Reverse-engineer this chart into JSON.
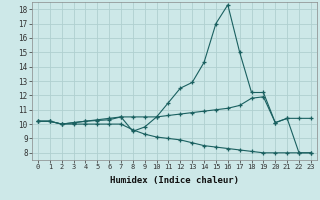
{
  "xlabel": "Humidex (Indice chaleur)",
  "xlim": [
    -0.5,
    23.5
  ],
  "ylim": [
    7.5,
    18.5
  ],
  "yticks": [
    8,
    9,
    10,
    11,
    12,
    13,
    14,
    15,
    16,
    17,
    18
  ],
  "xticks": [
    0,
    1,
    2,
    3,
    4,
    5,
    6,
    7,
    8,
    9,
    10,
    11,
    12,
    13,
    14,
    15,
    16,
    17,
    18,
    19,
    20,
    21,
    22,
    23
  ],
  "background_color": "#cde8e8",
  "grid_color": "#b0d0d0",
  "line_color": "#1a6060",
  "line1_x": [
    0,
    1,
    2,
    3,
    4,
    5,
    6,
    7,
    8,
    9,
    10,
    11,
    12,
    13,
    14,
    15,
    16,
    17,
    18,
    19,
    20,
    21,
    22,
    23
  ],
  "line1_y": [
    10.2,
    10.2,
    10.0,
    10.1,
    10.2,
    10.25,
    10.3,
    10.5,
    9.5,
    9.8,
    10.5,
    11.5,
    12.5,
    12.9,
    14.3,
    17.0,
    18.3,
    15.0,
    12.2,
    12.2,
    10.1,
    10.4,
    8.0,
    8.0
  ],
  "line2_x": [
    0,
    1,
    2,
    3,
    4,
    5,
    6,
    7,
    8,
    9,
    10,
    11,
    12,
    13,
    14,
    15,
    16,
    17,
    18,
    19,
    20,
    21,
    22,
    23
  ],
  "line2_y": [
    10.2,
    10.2,
    10.0,
    10.1,
    10.2,
    10.3,
    10.4,
    10.5,
    10.5,
    10.5,
    10.5,
    10.6,
    10.7,
    10.8,
    10.9,
    11.0,
    11.1,
    11.3,
    11.8,
    11.9,
    10.1,
    10.4,
    10.4,
    10.4
  ],
  "line3_x": [
    0,
    1,
    2,
    3,
    4,
    5,
    6,
    7,
    8,
    9,
    10,
    11,
    12,
    13,
    14,
    15,
    16,
    17,
    18,
    19,
    20,
    21,
    22,
    23
  ],
  "line3_y": [
    10.2,
    10.2,
    10.0,
    10.0,
    10.0,
    10.0,
    10.0,
    10.0,
    9.6,
    9.3,
    9.1,
    9.0,
    8.9,
    8.7,
    8.5,
    8.4,
    8.3,
    8.2,
    8.1,
    8.0,
    8.0,
    8.0,
    8.0,
    8.0
  ]
}
